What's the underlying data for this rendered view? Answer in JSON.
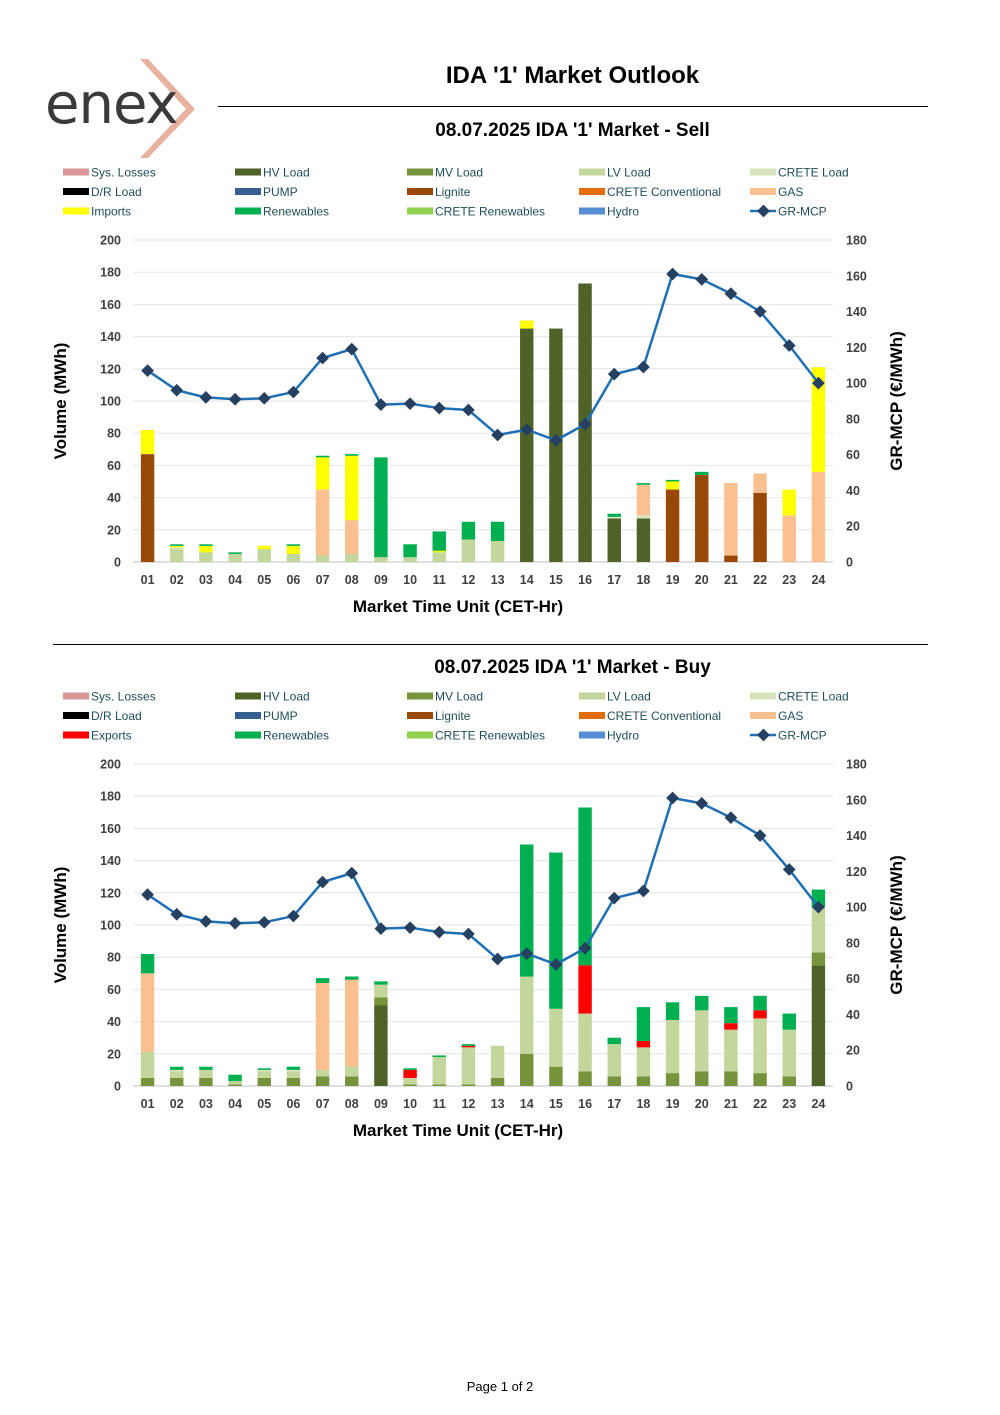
{
  "header": {
    "logo_text": "enex",
    "title": "IDA '1' Market Outlook"
  },
  "footer": {
    "page_label": "Page 1 of 2"
  },
  "colors": {
    "Sys. Losses": "#d99694",
    "HV Load": "#4f6228",
    "MV Load": "#77933c",
    "LV Load": "#c3d69b",
    "CRETE Load": "#d7e4bd",
    "D/R Load": "#000000",
    "PUMP": "#376092",
    "Lignite": "#984807",
    "CRETE Conventional": "#e46c0a",
    "GAS": "#fac090",
    "Imports": "#ffff00",
    "Exports": "#ff0000",
    "Renewables": "#00b050",
    "CRETE Renewables": "#92d050",
    "Hydro": "#558ed5",
    "GR-MCP": "#1f6fb5",
    "marker": "#254061"
  },
  "chart_data": [
    {
      "id": "sell",
      "type": "bar",
      "stacked": true,
      "title": "08.07.2025  IDA '1' Market - Sell",
      "xlabel": "Market Time Unit (CET-Hr)",
      "ylabel": "Volume (MWh)",
      "y2label": "GR-MCP (€/MWh)",
      "ylim": [
        0,
        200
      ],
      "y2lim": [
        0,
        180
      ],
      "yticks": [
        0,
        20,
        40,
        60,
        80,
        100,
        120,
        140,
        160,
        180,
        200
      ],
      "y2ticks": [
        0,
        20,
        40,
        60,
        80,
        100,
        120,
        140,
        160,
        180
      ],
      "categories": [
        "01",
        "02",
        "03",
        "04",
        "05",
        "06",
        "07",
        "08",
        "09",
        "10",
        "11",
        "12",
        "13",
        "14",
        "15",
        "16",
        "17",
        "18",
        "19",
        "20",
        "21",
        "22",
        "23",
        "24"
      ],
      "legend": [
        "Sys. Losses",
        "HV Load",
        "MV Load",
        "LV Load",
        "CRETE Load",
        "D/R Load",
        "PUMP",
        "Lignite",
        "CRETE Conventional",
        "GAS",
        "Imports",
        "Renewables",
        "CRETE Renewables",
        "Hydro",
        "GR-MCP"
      ],
      "series": [
        {
          "name": "HV Load",
          "values": [
            0,
            0,
            0,
            0,
            0,
            0,
            0,
            0,
            0,
            0,
            0,
            0,
            0,
            145,
            145,
            173,
            27,
            27,
            0,
            0,
            0,
            0,
            0,
            0
          ]
        },
        {
          "name": "MV Load",
          "values": [
            0,
            0,
            0,
            0,
            0,
            0,
            0,
            0,
            0,
            0,
            0,
            0,
            0,
            0,
            0,
            0,
            0,
            0,
            0,
            0,
            0,
            0,
            0,
            0
          ]
        },
        {
          "name": "LV Load",
          "values": [
            0,
            8,
            6,
            5,
            8,
            5,
            4,
            5,
            3,
            3,
            6,
            14,
            13,
            0,
            0,
            0,
            0,
            0,
            0,
            0,
            0,
            0,
            0,
            0
          ]
        },
        {
          "name": "CRETE Load",
          "values": [
            0,
            1,
            0,
            0,
            0,
            0,
            0,
            0,
            0,
            0,
            0,
            0,
            0,
            0,
            0,
            0,
            1,
            2,
            0,
            0,
            0,
            0,
            0,
            0
          ]
        },
        {
          "name": "Lignite",
          "values": [
            67,
            0,
            0,
            0,
            0,
            0,
            0,
            0,
            0,
            0,
            0,
            0,
            0,
            0,
            0,
            0,
            0,
            0,
            45,
            54,
            4,
            43,
            0,
            0
          ]
        },
        {
          "name": "GAS",
          "values": [
            0,
            0,
            0,
            0,
            0,
            0,
            41,
            21,
            0,
            0,
            0,
            0,
            0,
            0,
            0,
            0,
            0,
            19,
            0,
            0,
            45,
            12,
            29,
            56
          ]
        },
        {
          "name": "Imports",
          "values": [
            15,
            1,
            4,
            0,
            2,
            5,
            20,
            40,
            0,
            0,
            1,
            0,
            0,
            5,
            0,
            0,
            0,
            0,
            5,
            0,
            0,
            0,
            16,
            65
          ]
        },
        {
          "name": "Renewables",
          "values": [
            0,
            1,
            1,
            1,
            0,
            1,
            1,
            1,
            62,
            8,
            12,
            11,
            12,
            0,
            0,
            0,
            2,
            1,
            1,
            2,
            0,
            0,
            0,
            0
          ]
        }
      ],
      "line": {
        "name": "GR-MCP",
        "axis": "right",
        "values": [
          107,
          96,
          92,
          91,
          91.5,
          95,
          114,
          119,
          88,
          88.5,
          86,
          85,
          71,
          74,
          68,
          77,
          105,
          109,
          161,
          158,
          150,
          140,
          121,
          100
        ]
      }
    },
    {
      "id": "buy",
      "type": "bar",
      "stacked": true,
      "title": "08.07.2025  IDA '1' Market - Buy",
      "xlabel": "Market Time Unit (CET-Hr)",
      "ylabel": "Volume (MWh)",
      "y2label": "GR-MCP (€/MWh)",
      "ylim": [
        0,
        200
      ],
      "y2lim": [
        0,
        180
      ],
      "yticks": [
        0,
        20,
        40,
        60,
        80,
        100,
        120,
        140,
        160,
        180,
        200
      ],
      "y2ticks": [
        0,
        20,
        40,
        60,
        80,
        100,
        120,
        140,
        160,
        180
      ],
      "categories": [
        "01",
        "02",
        "03",
        "04",
        "05",
        "06",
        "07",
        "08",
        "09",
        "10",
        "11",
        "12",
        "13",
        "14",
        "15",
        "16",
        "17",
        "18",
        "19",
        "20",
        "21",
        "22",
        "23",
        "24"
      ],
      "legend": [
        "Sys. Losses",
        "HV Load",
        "MV Load",
        "LV Load",
        "CRETE Load",
        "D/R Load",
        "PUMP",
        "Lignite",
        "CRETE Conventional",
        "GAS",
        "Exports",
        "Renewables",
        "CRETE Renewables",
        "Hydro",
        "GR-MCP"
      ],
      "series": [
        {
          "name": "HV Load",
          "values": [
            0,
            0,
            0,
            0,
            0,
            0,
            0,
            0,
            50,
            0,
            0,
            0,
            0,
            0,
            0,
            0,
            0,
            0,
            0,
            0,
            0,
            0,
            0,
            75
          ]
        },
        {
          "name": "MV Load",
          "values": [
            5,
            5,
            5,
            1,
            5,
            5,
            6,
            6,
            5,
            1,
            1,
            1,
            5,
            20,
            12,
            9,
            6,
            6,
            8,
            9,
            9,
            8,
            6,
            8
          ]
        },
        {
          "name": "LV Load",
          "values": [
            16,
            4,
            5,
            2,
            4,
            4,
            4,
            6,
            8,
            4,
            17,
            23,
            20,
            48,
            36,
            36,
            20,
            18,
            33,
            38,
            26,
            34,
            29,
            28
          ]
        },
        {
          "name": "CRETE Load",
          "values": [
            0,
            1,
            0,
            0,
            1,
            1,
            0,
            0,
            0,
            0,
            0,
            0,
            0,
            0,
            0,
            0,
            0,
            0,
            0,
            0,
            0,
            0,
            0,
            0
          ]
        },
        {
          "name": "GAS",
          "values": [
            49,
            0,
            0,
            0,
            0,
            0,
            54,
            54,
            0,
            0,
            0,
            0,
            0,
            0,
            0,
            0,
            0,
            0,
            0,
            0,
            0,
            0,
            0,
            0
          ]
        },
        {
          "name": "Exports",
          "values": [
            0,
            0,
            0,
            0,
            0,
            0,
            0,
            0,
            0,
            5,
            0,
            1,
            0,
            0,
            0,
            30,
            0,
            4,
            0,
            0,
            4,
            5,
            0,
            0
          ]
        },
        {
          "name": "Renewables",
          "values": [
            12,
            2,
            2,
            4,
            1,
            2,
            3,
            2,
            2,
            1,
            1,
            1,
            0,
            82,
            97,
            98,
            4,
            21,
            11,
            9,
            10,
            9,
            10,
            11
          ]
        }
      ],
      "line": {
        "name": "GR-MCP",
        "axis": "right",
        "values": [
          107,
          96,
          92,
          91,
          91.5,
          95,
          114,
          119,
          88,
          88.5,
          86,
          85,
          71,
          74,
          68,
          77,
          105,
          109,
          161,
          158,
          150,
          140,
          121,
          100
        ]
      }
    }
  ]
}
